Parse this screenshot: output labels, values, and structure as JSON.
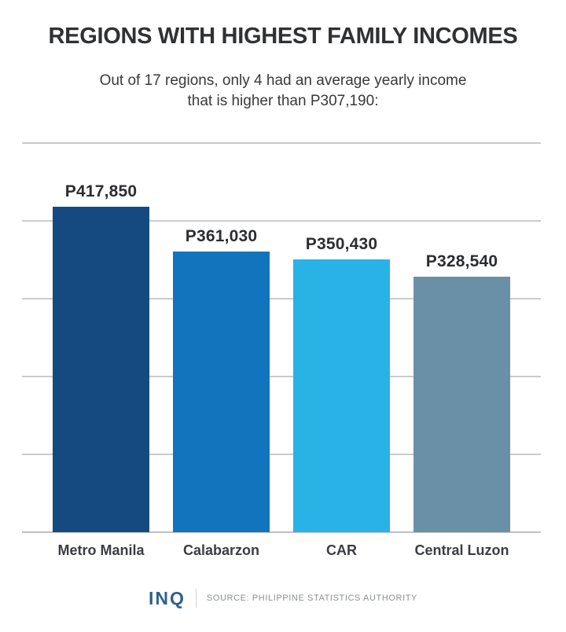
{
  "page": {
    "title": "REGIONS WITH HIGHEST FAMILY INCOMES",
    "subtitle_line1": "Out of 17 regions, only 4 had an average yearly income",
    "subtitle_line2": "that is higher than P307,190:"
  },
  "chart_data": {
    "type": "bar",
    "title": "REGIONS WITH HIGHEST FAMILY INCOMES",
    "subtitle": "Out of 17 regions, only 4 had an average yearly income that is higher than P307,190:",
    "categories": [
      "Metro Manila",
      "Calabarzon",
      "CAR",
      "Central Luzon"
    ],
    "values": [
      417850,
      361030,
      350430,
      328540
    ],
    "value_labels": [
      "P417,850",
      "P361,030",
      "P350,430",
      "P328,540"
    ],
    "bar_colors": [
      "#154a80",
      "#1274bc",
      "#29b2e6",
      "#6a90a8"
    ],
    "ylim": [
      0,
      500000
    ],
    "gridline_interval": 100000,
    "grid": "horizontal gridlines, unlabeled y-axis",
    "legend_position": "none",
    "xlabel": "",
    "ylabel": ""
  },
  "footer": {
    "logo": "INQ",
    "logo_color": "#2e608c",
    "source": "SOURCE: PHILIPPINE STATISTICS AUTHORITY"
  }
}
